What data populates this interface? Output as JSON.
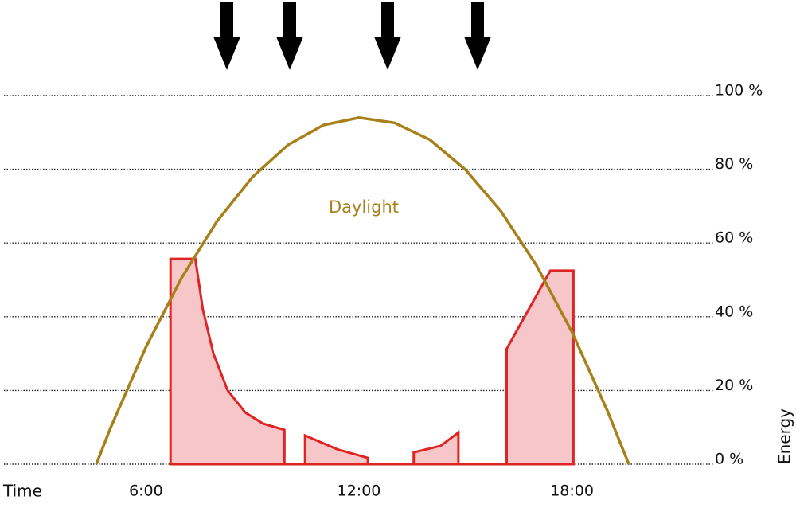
{
  "chart_data": {
    "type": "line",
    "annotation": "Daylight",
    "xlabel": "Time",
    "ylabel": "Energy",
    "xlim": [
      2,
      22
    ],
    "ylim": [
      0,
      100
    ],
    "xticks": [
      {
        "value": 6,
        "label": "6:00"
      },
      {
        "value": 12,
        "label": "12:00"
      },
      {
        "value": 18,
        "label": "18:00"
      }
    ],
    "yticks": [
      {
        "value": 0,
        "label": "0 %"
      },
      {
        "value": 20,
        "label": "20 %"
      },
      {
        "value": 40,
        "label": "40 %"
      },
      {
        "value": 60,
        "label": "60 %"
      },
      {
        "value": 80,
        "label": "80 %"
      },
      {
        "value": 100,
        "label": "100 %"
      }
    ],
    "grid": true,
    "series": [
      {
        "color": "#a8801a",
        "x": [
          4.6,
          5,
          6,
          7,
          8,
          9,
          10,
          11,
          12,
          13,
          14,
          15,
          16,
          17,
          18,
          19,
          19.6
        ],
        "values": [
          0,
          9.8,
          31.8,
          50.5,
          65.9,
          77.9,
          86.6,
          92.0,
          94,
          92.6,
          88.0,
          79.9,
          68.6,
          53.9,
          35.8,
          14.4,
          0
        ]
      },
      {
        "color": "#e02424",
        "fill": "#f7c6c8",
        "x": [
          6.69,
          6.69,
          7.39,
          7.6,
          7.9,
          8.3,
          8.8,
          9.3,
          9.9,
          9.9,
          10.48,
          10.48,
          11.4,
          12.25,
          12.25,
          13.54,
          13.54,
          14.3,
          14.8,
          14.8,
          16.16,
          16.16,
          17.39,
          18.04,
          18.04
        ],
        "values": [
          0,
          55.7,
          55.7,
          42,
          30,
          20,
          14,
          11,
          9.3,
          0,
          0,
          7.8,
          4,
          1.7,
          0,
          0,
          3.2,
          5,
          8.6,
          0,
          0,
          31.3,
          52.5,
          52.5,
          0
        ]
      }
    ]
  }
}
